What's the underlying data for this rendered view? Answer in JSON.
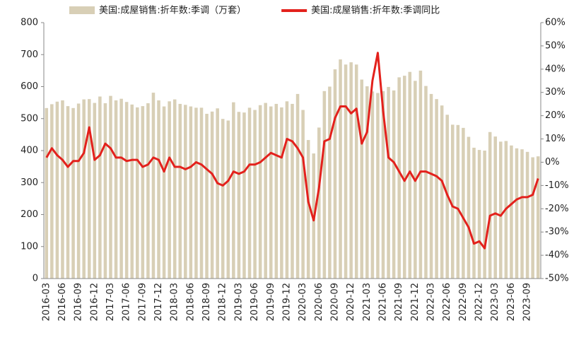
{
  "chart_data": {
    "type": "bar-line",
    "categories": [
      "2016-03",
      null,
      null,
      "2016-06",
      null,
      null,
      "2016-09",
      null,
      null,
      "2016-12",
      null,
      null,
      "2017-03",
      null,
      null,
      "2017-06",
      null,
      null,
      "2017-09",
      null,
      null,
      "2017-12",
      null,
      null,
      "2018-03",
      null,
      null,
      "2018-06",
      null,
      null,
      "2018-09",
      null,
      null,
      "2018-12",
      null,
      null,
      "2019-03",
      null,
      null,
      "2019-06",
      null,
      null,
      "2019-09",
      null,
      null,
      "2019-12",
      null,
      null,
      "2020-03",
      null,
      null,
      "2020-06",
      null,
      null,
      "2020-09",
      null,
      null,
      "2020-12",
      null,
      null,
      "2021-03",
      null,
      null,
      "2021-06",
      null,
      null,
      "2021-09",
      null,
      null,
      "2021-12",
      null,
      null,
      "2022-03",
      null,
      null,
      "2022-06",
      null,
      null,
      "2022-09",
      null,
      null,
      "2022-12",
      null,
      null,
      "2023-03",
      null,
      null,
      "2023-06",
      null,
      null,
      "2023-09",
      null,
      null
    ],
    "series": [
      {
        "name": "美国:成屋销售:折年数:季调（万套）",
        "type": "bar",
        "color": "#d8cfb6",
        "values": [
          533,
          545,
          553,
          557,
          539,
          533,
          547,
          560,
          561,
          549,
          569,
          548,
          571,
          557,
          562,
          552,
          544,
          535,
          539,
          548,
          581,
          557,
          538,
          554,
          560,
          546,
          543,
          538,
          534,
          534,
          515,
          522,
          532,
          499,
          494,
          551,
          521,
          519,
          534,
          527,
          542,
          549,
          538,
          546,
          535,
          554,
          546,
          577,
          527,
          433,
          391,
          472,
          586,
          600,
          654,
          685,
          669,
          676,
          669,
          622,
          601,
          585,
          580,
          586,
          599,
          588,
          629,
          634,
          646,
          618,
          650,
          602,
          577,
          561,
          541,
          512,
          481,
          480,
          471,
          443,
          409,
          402,
          400,
          458,
          444,
          428,
          430,
          416,
          407,
          404,
          396,
          379,
          382
        ]
      },
      {
        "name": "美国:成屋销售:折年数:季调同比",
        "type": "line",
        "axis": "y2",
        "color": "#e3211c",
        "values": [
          2,
          6,
          3,
          1,
          -2,
          0.5,
          0.5,
          4,
          15,
          1,
          3,
          8,
          6,
          2,
          2,
          0.5,
          1,
          1,
          -2,
          -1,
          2,
          1,
          -4,
          2,
          -2,
          -2,
          -3,
          -2,
          0,
          -1,
          -3,
          -5,
          -9,
          -10,
          -8,
          -4,
          -5,
          -4,
          -1,
          -1,
          0,
          2,
          4,
          3,
          2,
          10,
          9,
          6,
          2,
          -17,
          -25,
          -11,
          9,
          10,
          19,
          24,
          24,
          21,
          23,
          8,
          13,
          35,
          47,
          22,
          2,
          0,
          -4,
          -8,
          -4,
          -8,
          -4,
          -4,
          -5,
          -6,
          -8,
          -14,
          -19,
          -20,
          -24,
          -28,
          -35,
          -34,
          -37,
          -23,
          -22,
          -23,
          -20,
          -18,
          -16,
          -15,
          -15,
          -14,
          -7
        ]
      }
    ],
    "ylim": [
      0,
      800
    ],
    "yticks": [
      0,
      100,
      200,
      300,
      400,
      500,
      600,
      700,
      800
    ],
    "y2lim": [
      -50,
      60
    ],
    "y2ticks": [
      {
        "value": -50,
        "label": "-50%"
      },
      {
        "value": -40,
        "label": "-40%"
      },
      {
        "value": -30,
        "label": "-30%"
      },
      {
        "value": -20,
        "label": "-20%"
      },
      {
        "value": -10,
        "label": "-10%"
      },
      {
        "value": 0,
        "label": "0%"
      },
      {
        "value": 10,
        "label": "10%"
      },
      {
        "value": 20,
        "label": "20%"
      },
      {
        "value": 30,
        "label": "30%"
      },
      {
        "value": 40,
        "label": "40%"
      },
      {
        "value": 50,
        "label": "50%"
      },
      {
        "value": 60,
        "label": "60%"
      }
    ],
    "legend": "top"
  }
}
